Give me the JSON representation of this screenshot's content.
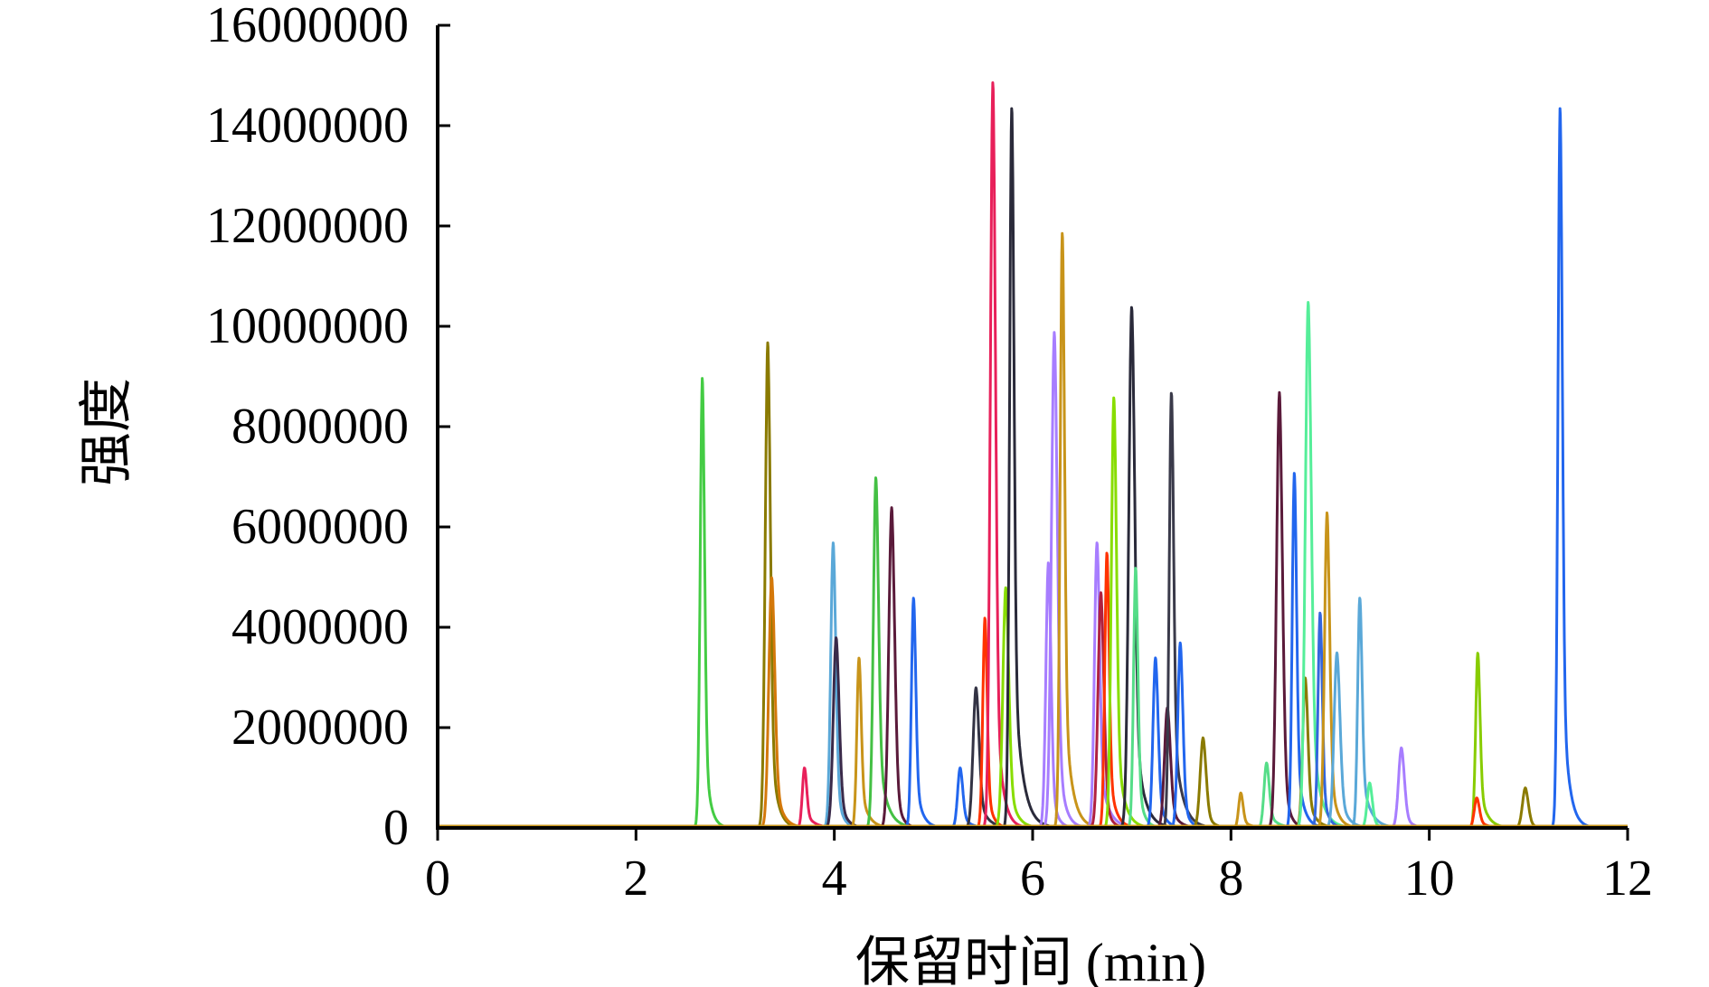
{
  "chart_data": {
    "type": "line",
    "title": "",
    "xlabel": "保留时间 (min)",
    "ylabel": "强度",
    "xlim": [
      0,
      12
    ],
    "ylim": [
      0,
      16000000
    ],
    "xticks": [
      "0",
      "2",
      "4",
      "6",
      "8",
      "10",
      "12"
    ],
    "yticks": [
      "0",
      "2000000",
      "4000000",
      "6000000",
      "8000000",
      "10000000",
      "12000000",
      "14000000",
      "16000000"
    ],
    "grid": false,
    "legend": "none",
    "peaks": [
      {
        "rt": 2.67,
        "height": 9000000,
        "color": "#44cc44"
      },
      {
        "rt": 3.33,
        "height": 9700000,
        "color": "#8a7a00"
      },
      {
        "rt": 3.37,
        "height": 5000000,
        "color": "#d4780a"
      },
      {
        "rt": 3.7,
        "height": 1200000,
        "color": "#e8205a"
      },
      {
        "rt": 3.99,
        "height": 5700000,
        "color": "#5aa8d8"
      },
      {
        "rt": 4.02,
        "height": 3800000,
        "color": "#3a2a4a"
      },
      {
        "rt": 4.25,
        "height": 3400000,
        "color": "#c8941a"
      },
      {
        "rt": 4.42,
        "height": 7000000,
        "color": "#44c044"
      },
      {
        "rt": 4.58,
        "height": 6400000,
        "color": "#5a1a3a"
      },
      {
        "rt": 4.8,
        "height": 4600000,
        "color": "#2266ee"
      },
      {
        "rt": 5.27,
        "height": 1200000,
        "color": "#2266ee"
      },
      {
        "rt": 5.43,
        "height": 2800000,
        "color": "#333344"
      },
      {
        "rt": 5.52,
        "height": 4200000,
        "color": "#ff3300"
      },
      {
        "rt": 5.6,
        "height": 14900000,
        "color": "#e8205a"
      },
      {
        "rt": 5.73,
        "height": 4800000,
        "color": "#88dd00"
      },
      {
        "rt": 5.79,
        "height": 14400000,
        "color": "#2a2a3a"
      },
      {
        "rt": 6.16,
        "height": 5300000,
        "color": "#a77dff"
      },
      {
        "rt": 6.22,
        "height": 9900000,
        "color": "#a77dff"
      },
      {
        "rt": 6.3,
        "height": 11900000,
        "color": "#c8941a"
      },
      {
        "rt": 6.65,
        "height": 5700000,
        "color": "#a77dff"
      },
      {
        "rt": 6.69,
        "height": 4700000,
        "color": "#b02040"
      },
      {
        "rt": 6.75,
        "height": 5500000,
        "color": "#ff3300"
      },
      {
        "rt": 6.82,
        "height": 8600000,
        "color": "#88dd00"
      },
      {
        "rt": 7.0,
        "height": 10400000,
        "color": "#2a2a3a"
      },
      {
        "rt": 7.04,
        "height": 5200000,
        "color": "#55dd88"
      },
      {
        "rt": 7.24,
        "height": 3400000,
        "color": "#2266ee"
      },
      {
        "rt": 7.36,
        "height": 2400000,
        "color": "#5a1a3a"
      },
      {
        "rt": 7.4,
        "height": 8700000,
        "color": "#3a3a4a"
      },
      {
        "rt": 7.49,
        "height": 3700000,
        "color": "#2266ee"
      },
      {
        "rt": 7.72,
        "height": 1800000,
        "color": "#8a7a00"
      },
      {
        "rt": 8.1,
        "height": 700000,
        "color": "#c8941a"
      },
      {
        "rt": 8.36,
        "height": 1300000,
        "color": "#55dd88"
      },
      {
        "rt": 8.49,
        "height": 8700000,
        "color": "#5a1a3a"
      },
      {
        "rt": 8.64,
        "height": 7100000,
        "color": "#2266ee"
      },
      {
        "rt": 8.75,
        "height": 3000000,
        "color": "#8a7a00"
      },
      {
        "rt": 8.78,
        "height": 10500000,
        "color": "#55ee99"
      },
      {
        "rt": 8.9,
        "height": 4300000,
        "color": "#3366dd"
      },
      {
        "rt": 8.97,
        "height": 6300000,
        "color": "#c8941a"
      },
      {
        "rt": 9.07,
        "height": 3500000,
        "color": "#5aa8d8"
      },
      {
        "rt": 9.3,
        "height": 4600000,
        "color": "#5aa8d8"
      },
      {
        "rt": 9.4,
        "height": 900000,
        "color": "#55ee99"
      },
      {
        "rt": 9.72,
        "height": 1600000,
        "color": "#a77dff"
      },
      {
        "rt": 10.49,
        "height": 3500000,
        "color": "#88cc00"
      },
      {
        "rt": 10.48,
        "height": 600000,
        "color": "#ff3300"
      },
      {
        "rt": 10.97,
        "height": 800000,
        "color": "#8a7a00"
      },
      {
        "rt": 11.32,
        "height": 14400000,
        "color": "#2266ee"
      }
    ]
  }
}
